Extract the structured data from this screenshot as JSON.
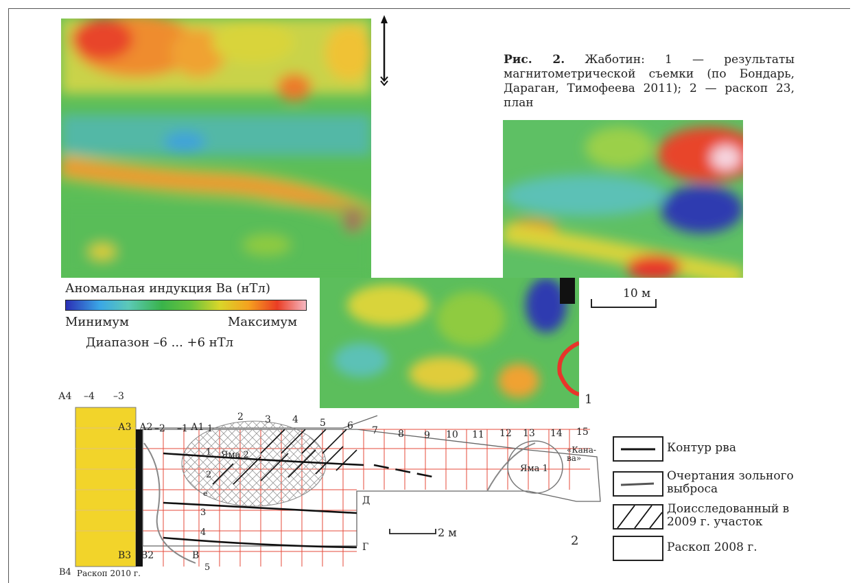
{
  "caption": {
    "lead": "Рис. 2.",
    "text": " Жаботин: 1 — результаты магнитометрической съемки (по Бондарь, Дараган, Тимофеева 2011); 2 — раскоп 23, план"
  },
  "legend": {
    "title": "Аномальная индукция Ba (нТл)",
    "min": "Минимум",
    "max": "Максимум",
    "range": "Диапазон –6 ... +6 нТл",
    "colors": [
      "#2b2fb5",
      "#3aa6e6",
      "#39b34a",
      "#d9d62a",
      "#f5a21f",
      "#ea3d24",
      "#f6b8c2"
    ]
  },
  "figure1": {
    "scale_label": "10 м",
    "panel_number": "1"
  },
  "plan": {
    "panel_number": "2",
    "scale_label": "2 м",
    "column_numbers": [
      "1",
      "2",
      "3",
      "4",
      "5",
      "6",
      "7",
      "8",
      "9",
      "10",
      "11",
      "12",
      "13",
      "14",
      "15"
    ],
    "left_columns": [
      "–4",
      "–3"
    ],
    "west_columns": [
      "–2",
      "–1"
    ],
    "row_numbers": [
      "1",
      "2",
      "3",
      "4",
      "5"
    ],
    "corner_labels": {
      "a4": "А4",
      "a3": "А3",
      "a2": "А2",
      "a1": "А1",
      "b3": "В3",
      "b2": "В2",
      "b4": "В4",
      "v": "В",
      "d": "Д",
      "g": "Г",
      "e": "е"
    },
    "pit2": "Яма 2",
    "pit1": "Яма 1",
    "kanava": "«Кана-ва»",
    "excavation_2010": "Раскоп 2010 г."
  },
  "key": [
    {
      "label": "Контур рва"
    },
    {
      "label": "Очертания зольного выброса"
    },
    {
      "label": "Доисследованный в 2009 г. участок"
    },
    {
      "label": "Раскоп 2008 г."
    }
  ]
}
